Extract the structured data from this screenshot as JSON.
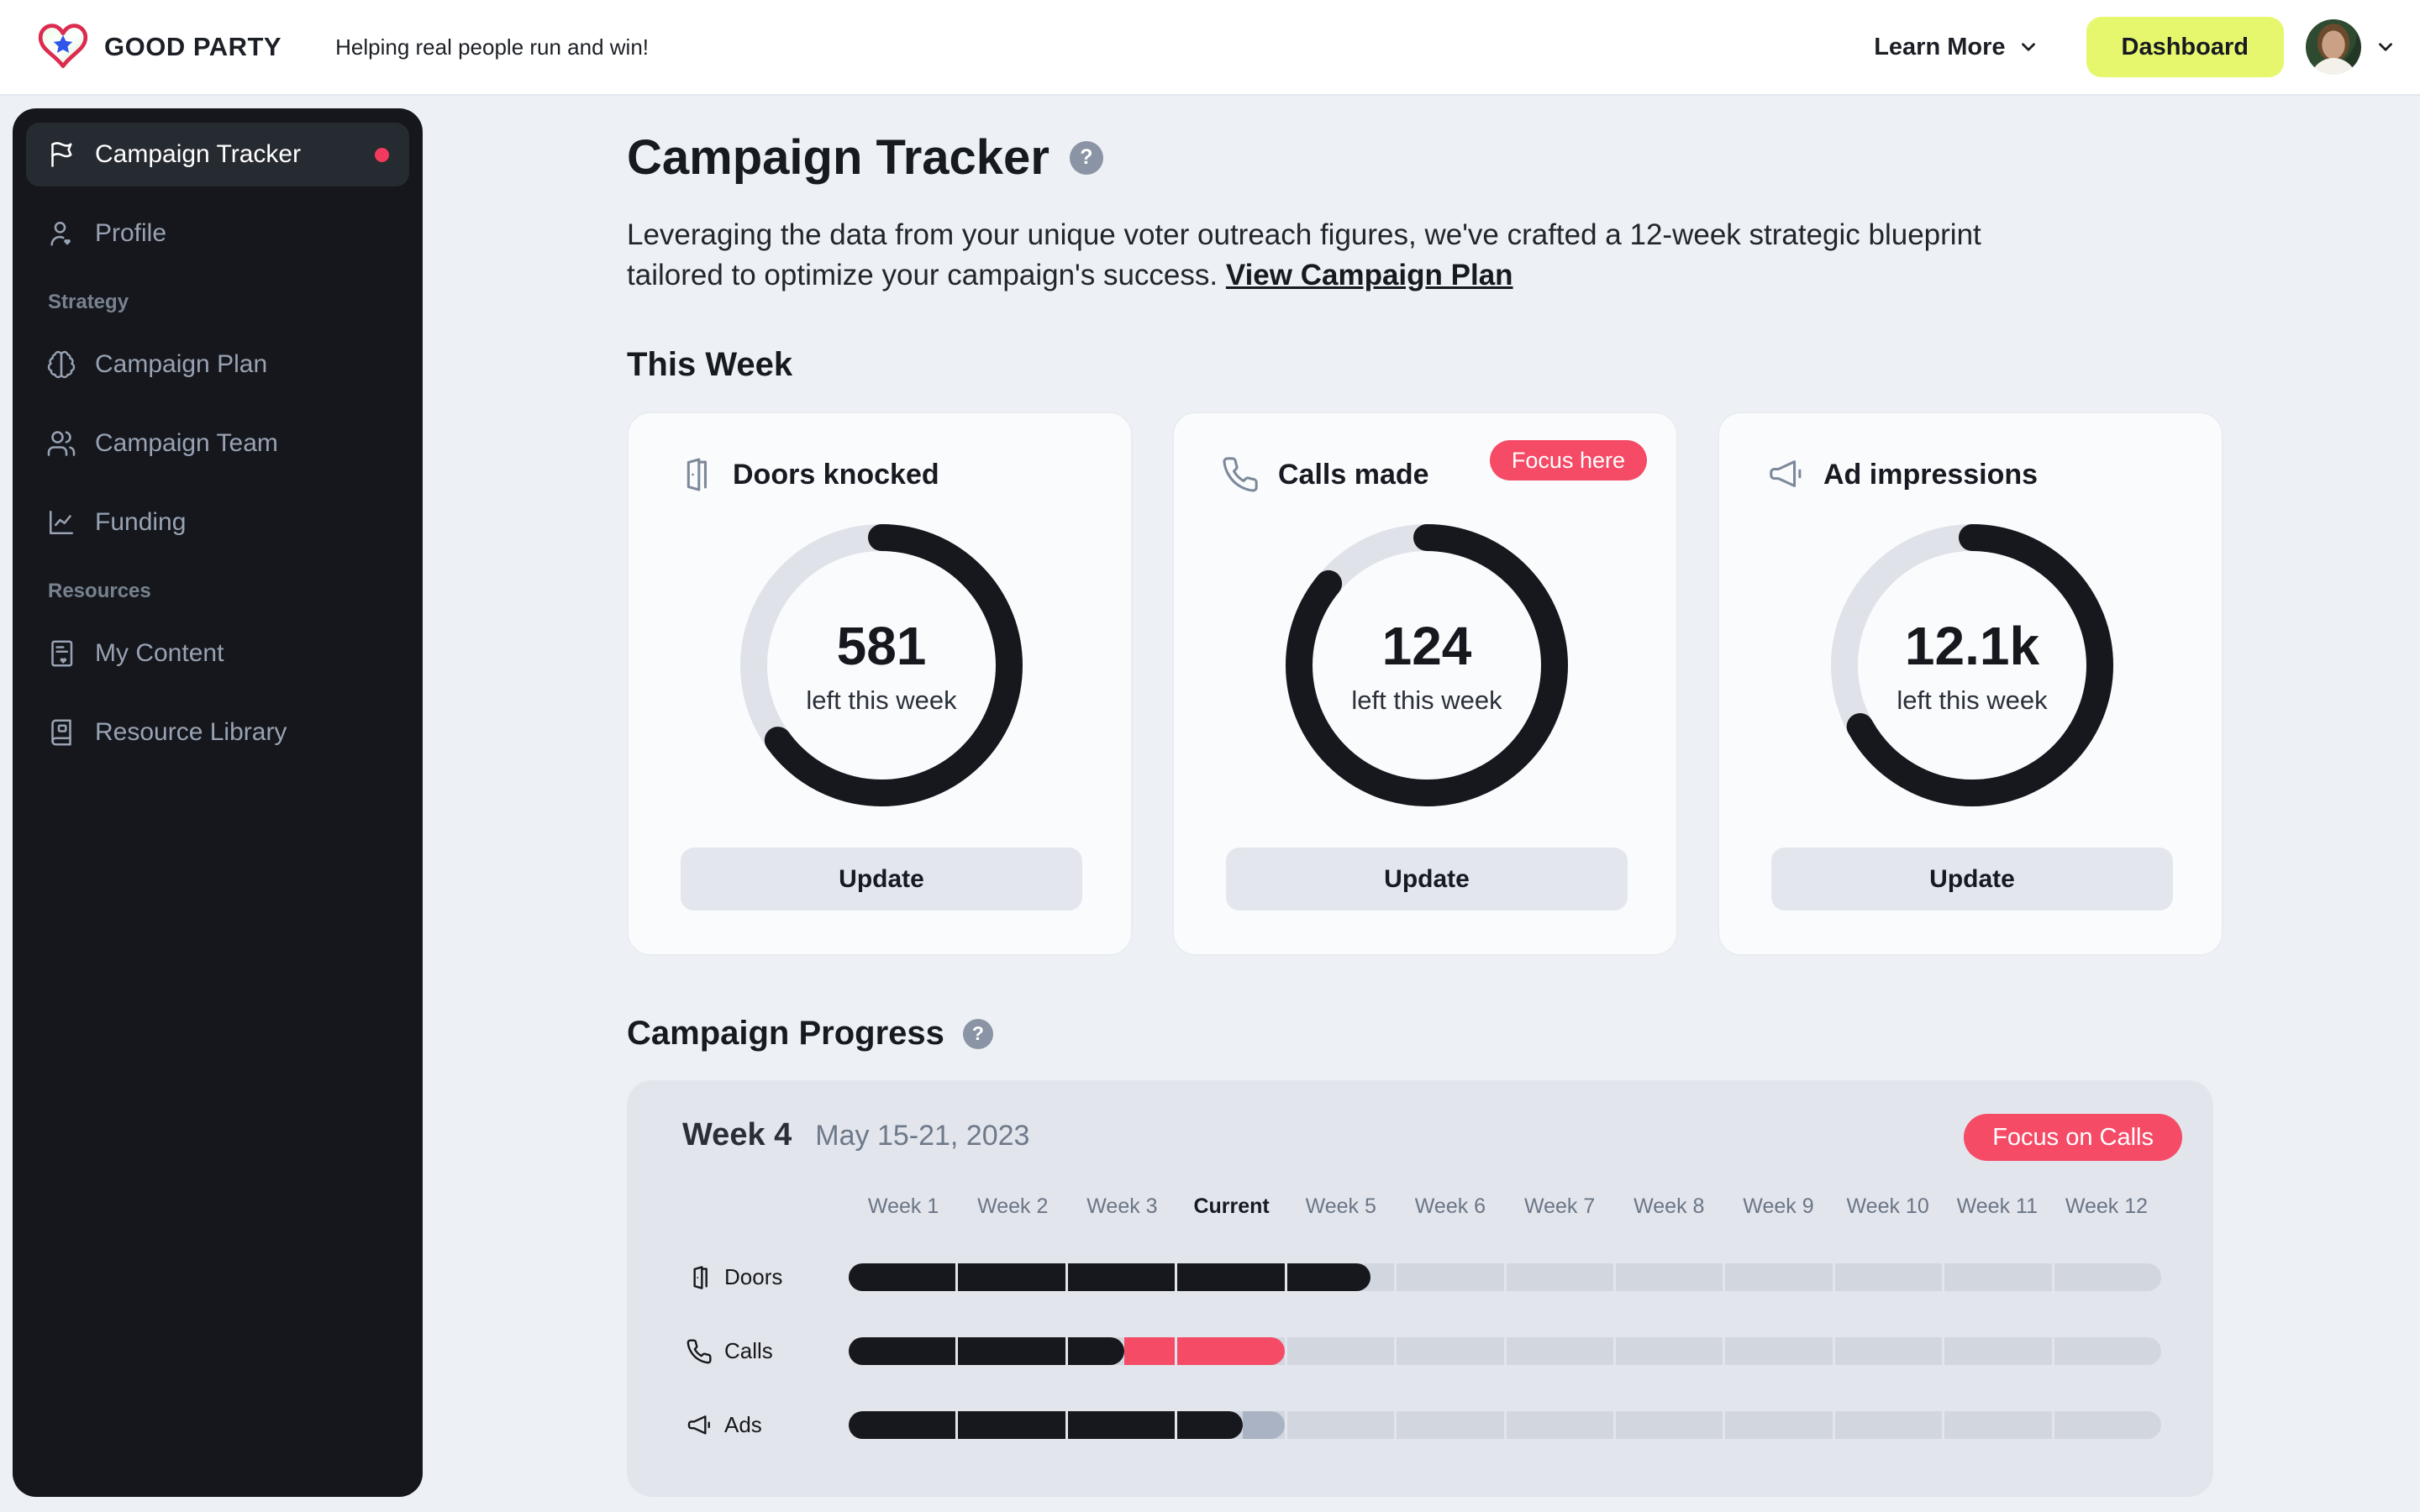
{
  "topbar": {
    "brand": "GOOD PARTY",
    "tagline": "Helping real people run and win!",
    "learn_more": "Learn More",
    "dashboard": "Dashboard"
  },
  "sidebar": {
    "tracker": "Campaign Tracker",
    "profile": "Profile",
    "strategy_title": "Strategy",
    "plan": "Campaign Plan",
    "team": "Campaign Team",
    "funding": "Funding",
    "resources_title": "Resources",
    "content": "My Content",
    "library": "Resource Library"
  },
  "main": {
    "title": "Campaign Tracker",
    "help": "?",
    "description_line1": "Leveraging the data from your unique voter outreach figures, we've crafted a 12-week strategic blueprint",
    "description_line2": "tailored to optimize your campaign's success.",
    "description_link": "View Campaign Plan",
    "this_week": "This Week"
  },
  "cards": {
    "doors": {
      "title": "Doors knocked",
      "value": "581",
      "sub": "left this week",
      "button": "Update",
      "fraction": 0.65
    },
    "calls": {
      "title": "Calls made",
      "badge": "Focus here",
      "value": "124",
      "sub": "left this week",
      "button": "Update",
      "fraction": 0.86
    },
    "ads": {
      "title": "Ad impressions",
      "value": "12.1k",
      "sub": "left this week",
      "button": "Update",
      "fraction": 0.67
    }
  },
  "progress": {
    "heading": "Campaign Progress",
    "week_label": "Week 4",
    "date_range": "May 15-21, 2023",
    "action": "Focus on Calls",
    "current_index": 3,
    "columns": [
      "Week 1",
      "Week 2",
      "Week 3",
      "Current",
      "Week 5",
      "Week 6",
      "Week 7",
      "Week 8",
      "Week 9",
      "Week 10",
      "Week 11",
      "Week 12"
    ],
    "rows": [
      {
        "label": "Doors",
        "icon": "door-icon",
        "segments": [
          [
            {
              "c": "dark",
              "f": 0,
              "t": 1
            }
          ],
          [
            {
              "c": "dark",
              "f": 0,
              "t": 1
            }
          ],
          [
            {
              "c": "dark",
              "f": 0,
              "t": 1
            }
          ],
          [
            {
              "c": "dark",
              "f": 0,
              "t": 1
            }
          ],
          [
            {
              "c": "dark",
              "f": 0,
              "t": 0.78,
              "cap": true
            }
          ],
          [],
          [],
          [],
          [],
          [],
          [],
          []
        ]
      },
      {
        "label": "Calls",
        "icon": "phone-icon",
        "segments": [
          [
            {
              "c": "dark",
              "f": 0,
              "t": 1
            }
          ],
          [
            {
              "c": "dark",
              "f": 0,
              "t": 1
            }
          ],
          [
            {
              "c": "dark",
              "f": 0,
              "t": 0.53,
              "cap": true
            },
            {
              "c": "pink",
              "f": 0.53,
              "t": 1
            }
          ],
          [
            {
              "c": "pink",
              "f": 0,
              "t": 1,
              "cap": true
            }
          ],
          [],
          [],
          [],
          [],
          [],
          [],
          [],
          []
        ]
      },
      {
        "label": "Ads",
        "icon": "megaphone-icon",
        "segments": [
          [
            {
              "c": "dark",
              "f": 0,
              "t": 1
            }
          ],
          [
            {
              "c": "dark",
              "f": 0,
              "t": 1
            }
          ],
          [
            {
              "c": "dark",
              "f": 0,
              "t": 1
            }
          ],
          [
            {
              "c": "dark",
              "f": 0,
              "t": 0.61,
              "cap": true
            },
            {
              "c": "muted",
              "f": 0.61,
              "t": 1,
              "cap": true
            }
          ],
          [],
          [],
          [],
          [],
          [],
          [],
          [],
          []
        ]
      }
    ]
  },
  "colors": {
    "accent_pink": "#f54b66",
    "dark": "#16181d",
    "muted_fill": "#a9b3c3",
    "track": "#d2d6df",
    "ring_track": "#e0e2e9",
    "dashboard_bg": "#e6f76e",
    "sidebar_bg": "#15171c"
  }
}
